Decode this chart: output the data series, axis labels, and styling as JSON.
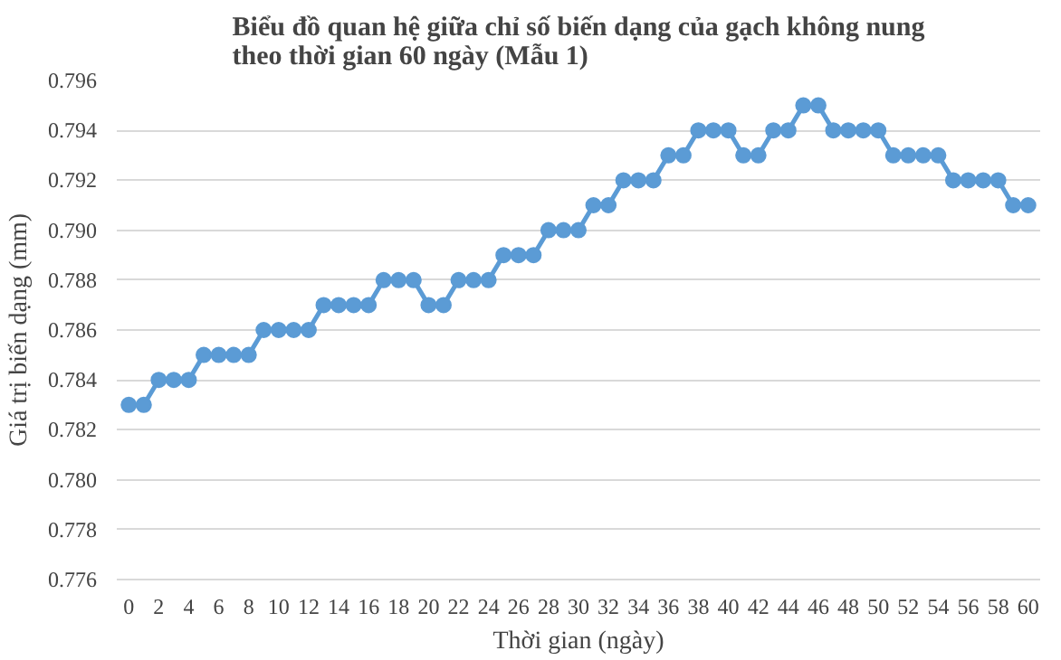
{
  "chart_data": {
    "type": "line",
    "title": "Biểu đồ quan hệ giữa chỉ số biến dạng của gạch không nung\ntheo thời gian 60 ngày (Mẫu 1)",
    "xlabel": "Thời gian (ngày)",
    "ylabel": "Giá trị biến dạng (mm)",
    "x": [
      0,
      1,
      2,
      3,
      4,
      5,
      6,
      7,
      8,
      9,
      10,
      11,
      12,
      13,
      14,
      15,
      16,
      17,
      18,
      19,
      20,
      21,
      22,
      23,
      24,
      25,
      26,
      27,
      28,
      29,
      30,
      31,
      32,
      33,
      34,
      35,
      36,
      37,
      38,
      39,
      40,
      41,
      42,
      43,
      44,
      45,
      46,
      47,
      48,
      49,
      50,
      51,
      52,
      53,
      54,
      55,
      56,
      57,
      58,
      59,
      60
    ],
    "series": [
      {
        "color": "#5b9bd5",
        "values": [
          0.783,
          0.783,
          0.784,
          0.784,
          0.784,
          0.785,
          0.785,
          0.785,
          0.785,
          0.786,
          0.786,
          0.786,
          0.786,
          0.787,
          0.787,
          0.787,
          0.787,
          0.788,
          0.788,
          0.788,
          0.787,
          0.787,
          0.788,
          0.788,
          0.788,
          0.789,
          0.789,
          0.789,
          0.79,
          0.79,
          0.79,
          0.791,
          0.791,
          0.792,
          0.792,
          0.792,
          0.793,
          0.793,
          0.794,
          0.794,
          0.794,
          0.793,
          0.793,
          0.794,
          0.794,
          0.795,
          0.795,
          0.794,
          0.794,
          0.794,
          0.794,
          0.793,
          0.793,
          0.793,
          0.793,
          0.792,
          0.792,
          0.792,
          0.792,
          0.791,
          0.791
        ]
      }
    ],
    "xlim": [
      -0.8,
      60.8
    ],
    "xticks": [
      0,
      2,
      4,
      6,
      8,
      10,
      12,
      14,
      16,
      18,
      20,
      22,
      24,
      26,
      28,
      30,
      32,
      34,
      36,
      38,
      40,
      42,
      44,
      46,
      48,
      50,
      52,
      54,
      56,
      58,
      60
    ],
    "ylim": [
      0.776,
      0.796
    ],
    "yticks": [
      {
        "value": 0.776,
        "label": "0.776"
      },
      {
        "value": 0.778,
        "label": "0.778"
      },
      {
        "value": 0.78,
        "label": "0.780"
      },
      {
        "value": 0.782,
        "label": "0.782"
      },
      {
        "value": 0.784,
        "label": "0.784"
      },
      {
        "value": 0.786,
        "label": "0.786"
      },
      {
        "value": 0.788,
        "label": "0.788"
      },
      {
        "value": 0.79,
        "label": "0.790"
      },
      {
        "value": 0.792,
        "label": "0.792"
      },
      {
        "value": 0.794,
        "label": "0.794"
      },
      {
        "value": 0.796,
        "label": "0.796"
      }
    ],
    "grid": "y",
    "marker": "circle",
    "line_style": "solid"
  }
}
